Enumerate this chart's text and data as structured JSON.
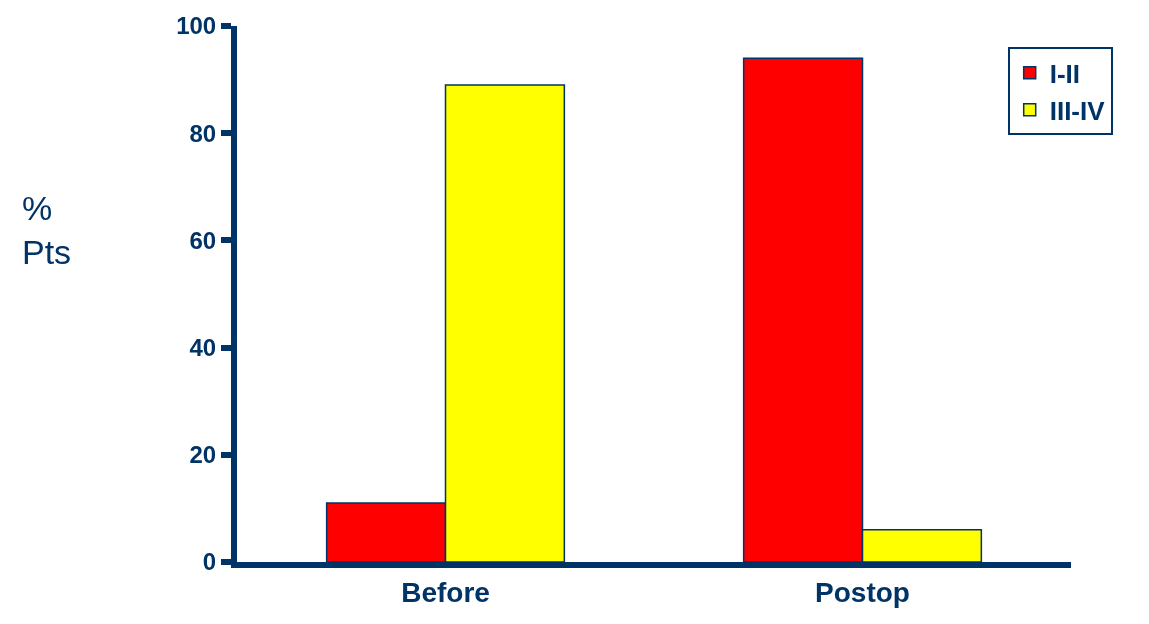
{
  "chart_data": {
    "type": "bar",
    "ylabel": "%\nPts",
    "categories": [
      "Before",
      "Postop"
    ],
    "series": [
      {
        "name": "I-II",
        "color": "#ff0000",
        "values": [
          11,
          94
        ]
      },
      {
        "name": "III-IV",
        "color": "#ffff00",
        "values": [
          89,
          6
        ]
      }
    ],
    "ylim": [
      0,
      100
    ],
    "yticks": [
      0,
      20,
      40,
      60,
      80,
      100
    ],
    "legend": "top right"
  }
}
